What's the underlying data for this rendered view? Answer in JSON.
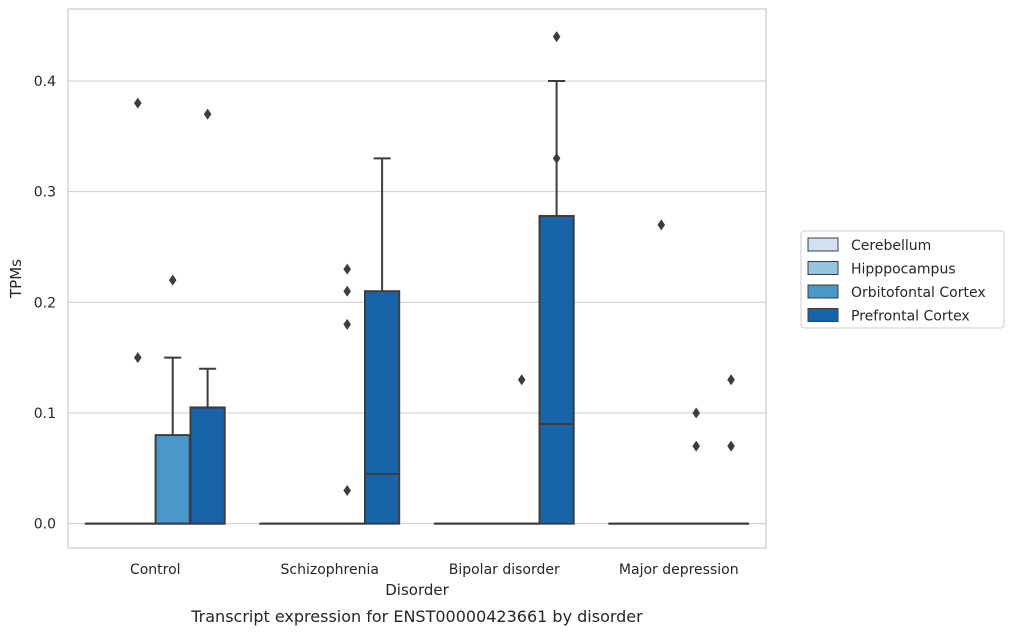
{
  "chart_data": {
    "type": "box",
    "title": "",
    "caption": "Transcript expression for ENST00000423661 by disorder",
    "xlabel": "Disorder",
    "ylabel": "TPMs",
    "ylim": [
      -0.022,
      0.465
    ],
    "yticks": [
      0.0,
      0.1,
      0.2,
      0.3,
      0.4
    ],
    "ytick_labels": [
      "0.0",
      "0.1",
      "0.2",
      "0.3",
      "0.4"
    ],
    "grid": "horizontal",
    "legend_position": "right",
    "categories": [
      "Control",
      "Schizophrenia",
      "Bipolar disorder",
      "Major depression"
    ],
    "series": [
      {
        "name": "Cerebellum",
        "color": "#d0e1f2",
        "boxes": [
          {
            "q1": 0,
            "median": 0,
            "q3": 0,
            "whisker_low": 0,
            "whisker_high": 0,
            "outliers": []
          },
          {
            "q1": 0,
            "median": 0,
            "q3": 0,
            "whisker_low": 0,
            "whisker_high": 0,
            "outliers": []
          },
          {
            "q1": 0,
            "median": 0,
            "q3": 0,
            "whisker_low": 0,
            "whisker_high": 0,
            "outliers": []
          },
          {
            "q1": 0,
            "median": 0,
            "q3": 0,
            "whisker_low": 0,
            "whisker_high": 0,
            "outliers": []
          }
        ]
      },
      {
        "name": "Hipppocampus",
        "color": "#94c4df",
        "boxes": [
          {
            "q1": 0,
            "median": 0,
            "q3": 0,
            "whisker_low": 0,
            "whisker_high": 0,
            "outliers": [
              0.38,
              0.15
            ]
          },
          {
            "q1": 0,
            "median": 0,
            "q3": 0,
            "whisker_low": 0,
            "whisker_high": 0,
            "outliers": []
          },
          {
            "q1": 0,
            "median": 0,
            "q3": 0,
            "whisker_low": 0,
            "whisker_high": 0,
            "outliers": []
          },
          {
            "q1": 0,
            "median": 0,
            "q3": 0,
            "whisker_low": 0,
            "whisker_high": 0,
            "outliers": [
              0.27
            ]
          }
        ]
      },
      {
        "name": "Orbitofontal Cortex",
        "color": "#4a98c9",
        "boxes": [
          {
            "q1": 0,
            "median": 0,
            "q3": 0.08,
            "whisker_low": 0,
            "whisker_high": 0.15,
            "outliers": [
              0.22
            ]
          },
          {
            "q1": 0,
            "median": 0,
            "q3": 0,
            "whisker_low": 0,
            "whisker_high": 0,
            "outliers": [
              0.23,
              0.21,
              0.18,
              0.03
            ]
          },
          {
            "q1": 0,
            "median": 0,
            "q3": 0,
            "whisker_low": 0,
            "whisker_high": 0,
            "outliers": [
              0.13
            ]
          },
          {
            "q1": 0,
            "median": 0,
            "q3": 0,
            "whisker_low": 0,
            "whisker_high": 0,
            "outliers": [
              0.1,
              0.07
            ]
          }
        ]
      },
      {
        "name": "Prefrontal Cortex",
        "color": "#1764ab",
        "boxes": [
          {
            "q1": 0,
            "median": 0,
            "q3": 0.105,
            "whisker_low": 0,
            "whisker_high": 0.14,
            "outliers": [
              0.37
            ]
          },
          {
            "q1": 0,
            "median": 0.045,
            "q3": 0.21,
            "whisker_low": 0,
            "whisker_high": 0.33,
            "outliers": []
          },
          {
            "q1": 0,
            "median": 0.09,
            "q3": 0.278,
            "whisker_low": 0,
            "whisker_high": 0.4,
            "outliers": [
              0.44,
              0.33
            ]
          },
          {
            "q1": 0,
            "median": 0,
            "q3": 0,
            "whisker_low": 0,
            "whisker_high": 0,
            "outliers": [
              0.13,
              0.07
            ]
          }
        ]
      }
    ]
  }
}
